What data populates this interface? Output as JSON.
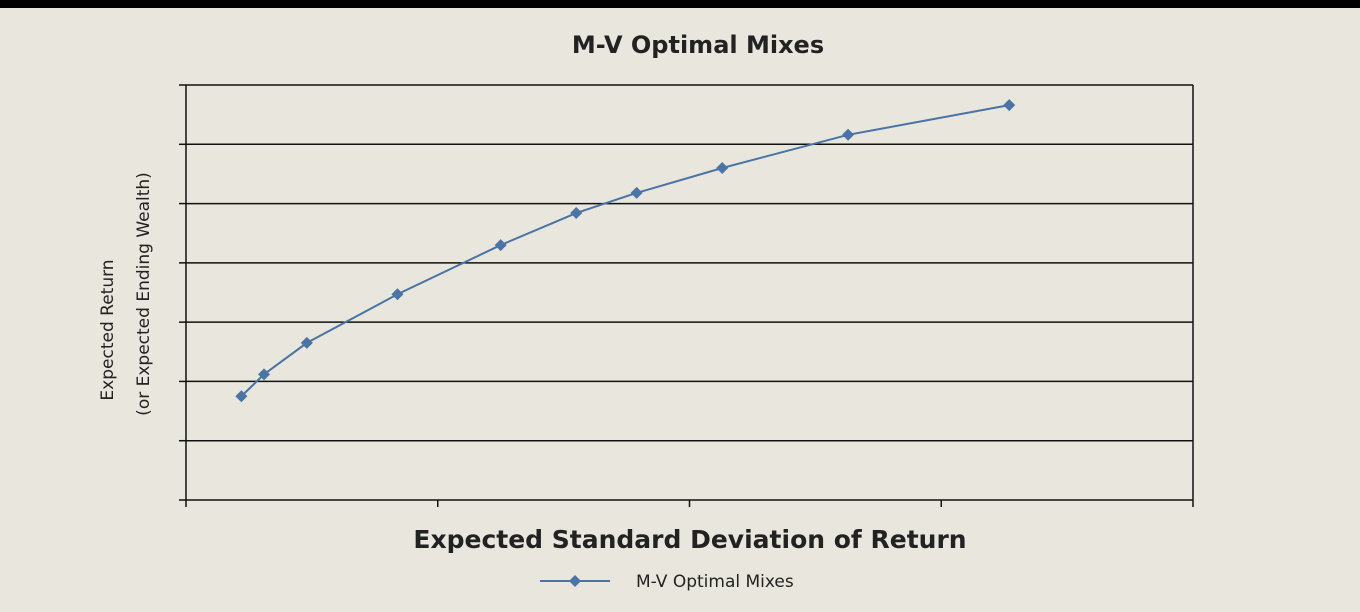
{
  "chart_data": {
    "type": "line",
    "title": "M-V Optimal Mixes",
    "x_label": "Expected Standard Deviation of Return",
    "y_label": [
      "Expected Return",
      "(or Expected Ending Wealth)"
    ],
    "xlim": [
      0,
      4
    ],
    "xticks": [
      0,
      1,
      2,
      3,
      4
    ],
    "ylim": [
      0,
      7
    ],
    "yticks": [
      0,
      1,
      2,
      3,
      4,
      5,
      6,
      7
    ],
    "grid": true,
    "legend": "bottom",
    "series": [
      {
        "name": "M-V Optimal Mixes",
        "color": "#4a73a6",
        "x": [
          0.22,
          0.31,
          0.48,
          0.84,
          1.25,
          1.55,
          1.79,
          2.13,
          2.63,
          3.27
        ],
        "values": [
          1.75,
          2.12,
          2.65,
          3.47,
          4.3,
          4.84,
          5.18,
          5.6,
          6.16,
          6.66
        ]
      }
    ]
  }
}
